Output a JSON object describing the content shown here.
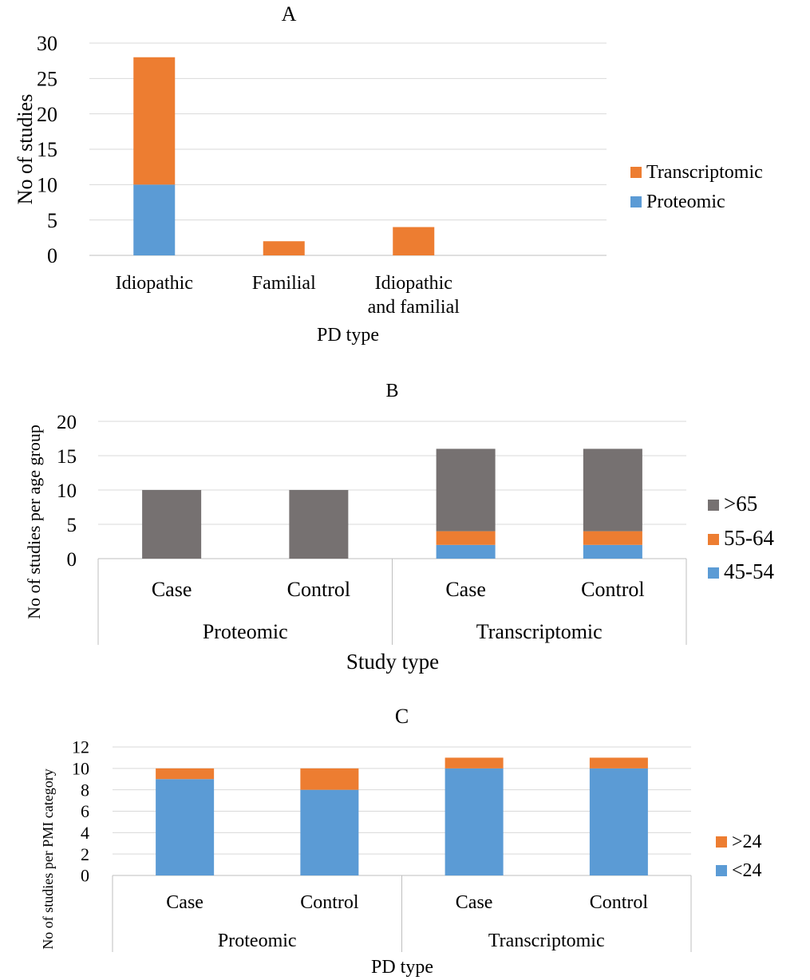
{
  "chart_data": [
    {
      "panel": "A",
      "type": "bar",
      "stacked": true,
      "title": "A",
      "xlabel": "PD type",
      "ylabel": "No of studies",
      "ylim": [
        0,
        30
      ],
      "yticks": [
        0,
        5,
        10,
        15,
        20,
        25,
        30
      ],
      "grid": true,
      "legend_position": "right",
      "categories": [
        [
          "Idiopathic"
        ],
        [
          "Familial"
        ],
        [
          "Idiopathic",
          "and familial"
        ],
        [
          ""
        ]
      ],
      "series": [
        {
          "name": "Proteomic",
          "color": "#5b9bd5",
          "values": [
            10,
            0,
            0,
            0
          ]
        },
        {
          "name": "Transcriptomic",
          "color": "#ed7d31",
          "values": [
            18,
            2,
            4,
            0
          ]
        }
      ],
      "legend": [
        "Transcriptomic",
        "Proteomic"
      ]
    },
    {
      "panel": "B",
      "type": "bar",
      "stacked": true,
      "title": "B",
      "xlabel": "Study type",
      "ylabel": "No of studies per age group",
      "ylim": [
        0,
        20
      ],
      "yticks": [
        0,
        5,
        10,
        15,
        20
      ],
      "grid": true,
      "legend_position": "right",
      "groups": [
        {
          "label": "Proteomic",
          "categories": [
            "Case",
            "Control"
          ]
        },
        {
          "label": "Transcriptomic",
          "categories": [
            "Case",
            "Control"
          ]
        }
      ],
      "series": [
        {
          "name": "45-54",
          "color": "#5b9bd5",
          "values": [
            0,
            0,
            2,
            2
          ]
        },
        {
          "name": "55-64",
          "color": "#ed7d31",
          "values": [
            0,
            0,
            2,
            2
          ]
        },
        {
          "name": ">65",
          "color": "#767171",
          "values": [
            10,
            10,
            12,
            12
          ]
        }
      ],
      "legend": [
        ">65",
        "55-64",
        "45-54"
      ]
    },
    {
      "panel": "C",
      "type": "bar",
      "stacked": true,
      "title": "C",
      "xlabel": "PD type",
      "ylabel": "No of studies per PMI category",
      "ylim": [
        0,
        12
      ],
      "yticks": [
        0,
        2,
        4,
        6,
        8,
        10,
        12
      ],
      "grid": true,
      "legend_position": "right",
      "groups": [
        {
          "label": "Proteomic",
          "categories": [
            "Case",
            "Control"
          ]
        },
        {
          "label": "Transcriptomic",
          "categories": [
            "Case",
            "Control"
          ]
        }
      ],
      "series": [
        {
          "name": "<24",
          "color": "#5b9bd5",
          "values": [
            9,
            8,
            10,
            10
          ]
        },
        {
          "name": ">24",
          "color": "#ed7d31",
          "values": [
            1,
            2,
            1,
            1
          ]
        }
      ],
      "legend": [
        ">24",
        "<24"
      ]
    }
  ]
}
